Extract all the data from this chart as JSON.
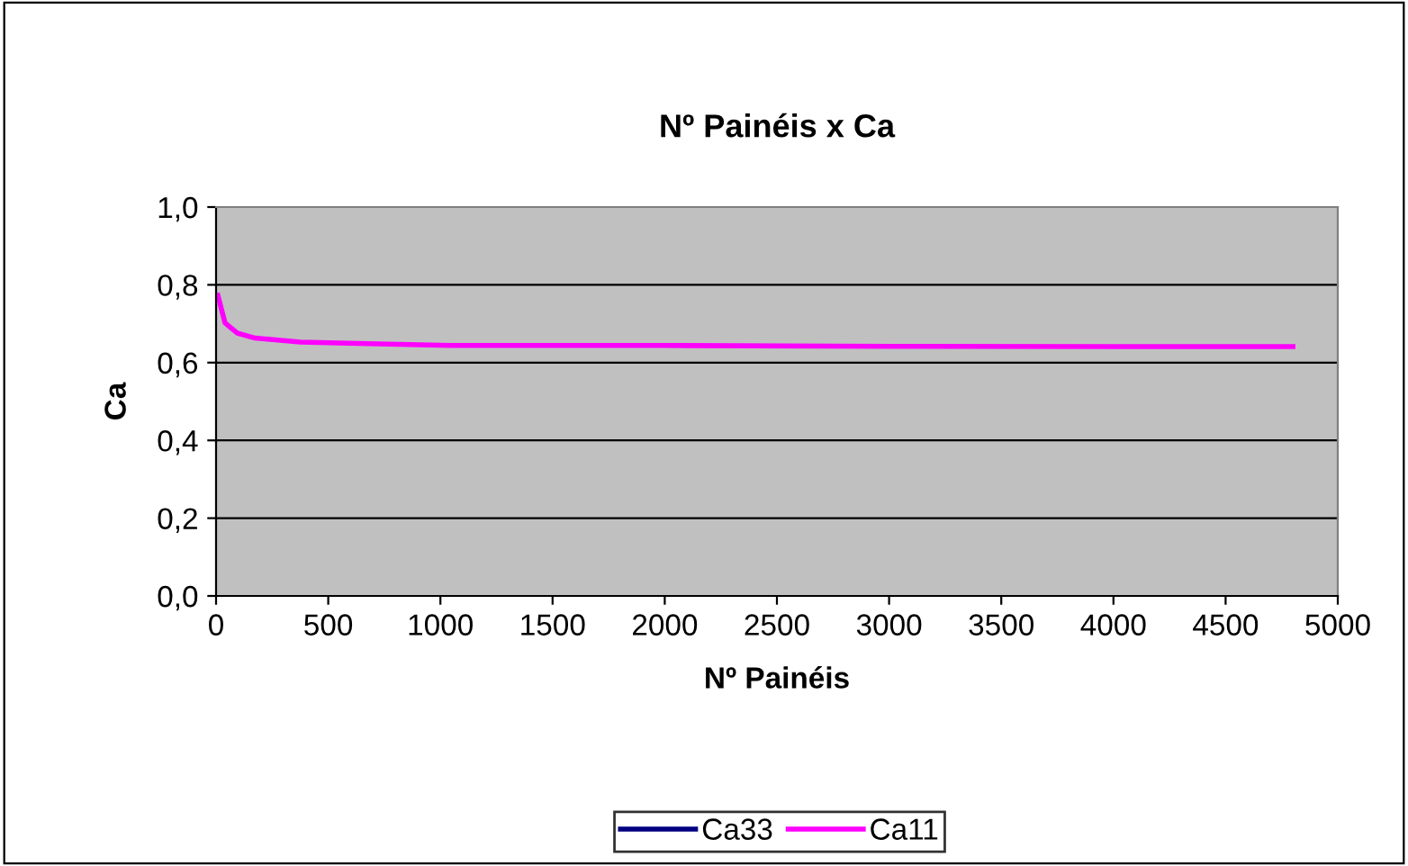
{
  "chart_data": {
    "type": "line",
    "title": "Nº Painéis x Ca",
    "xlabel": "Nº Painéis",
    "ylabel": "Ca",
    "x": [
      8,
      40,
      94,
      174,
      375,
      586,
      1043,
      2000,
      3000,
      4000,
      4800
    ],
    "series": [
      {
        "name": "Ca33",
        "color": "#000080",
        "values": [
          null,
          null,
          null,
          null,
          null,
          null,
          null,
          null,
          null,
          null,
          null
        ]
      },
      {
        "name": "Ca11",
        "color": "#ff00ff",
        "values": [
          0.773,
          0.702,
          0.676,
          0.663,
          0.653,
          0.65,
          0.644,
          0.644,
          0.642,
          0.641,
          0.641
        ]
      }
    ],
    "xlim": [
      0,
      5000
    ],
    "xticks": [
      0,
      500,
      1000,
      1500,
      2000,
      2500,
      3000,
      3500,
      4000,
      4500,
      5000
    ],
    "ylim": [
      0,
      1
    ],
    "yticks": [
      {
        "value": 0,
        "label": "0,0"
      },
      {
        "value": 0.2,
        "label": "0,2"
      },
      {
        "value": 0.4,
        "label": "0,4"
      },
      {
        "value": 0.6,
        "label": "0,6"
      },
      {
        "value": 0.8,
        "label": "0,8"
      },
      {
        "value": 1,
        "label": "1,0"
      }
    ],
    "grid": "y",
    "legend": "bottom",
    "marker": "none",
    "line_style": "solid"
  }
}
